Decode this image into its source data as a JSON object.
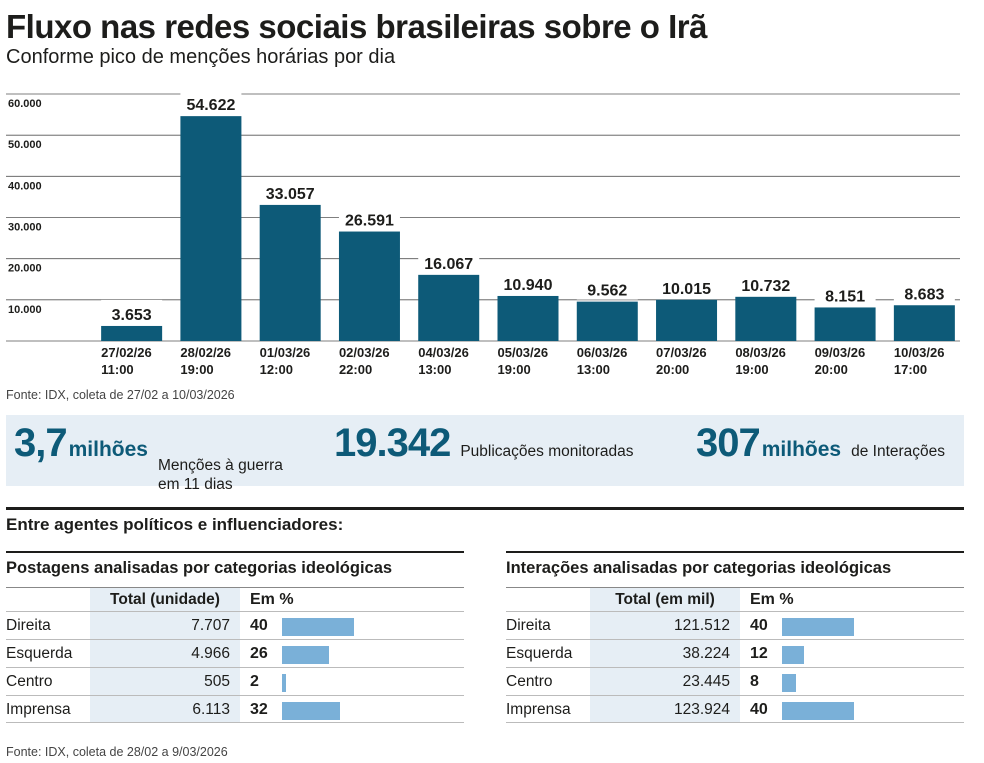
{
  "header": {
    "title": "Fluxo nas redes sociais brasileiras sobre o Irã",
    "subtitle": "Conforme pico de menções horárias por dia"
  },
  "chart_data": {
    "type": "bar",
    "yticks": [
      "10.000",
      "20.000",
      "30.000",
      "40.000",
      "50.000",
      "60.000"
    ],
    "ylim": [
      0,
      60000
    ],
    "grid": true,
    "bar_color": "#0d5a78",
    "bars": [
      {
        "date": "27/02/26",
        "time": "11:00",
        "value": 3653,
        "label": "3.653"
      },
      {
        "date": "28/02/26",
        "time": "19:00",
        "value": 54622,
        "label": "54.622"
      },
      {
        "date": "01/03/26",
        "time": "12:00",
        "value": 33057,
        "label": "33.057"
      },
      {
        "date": "02/03/26",
        "time": "22:00",
        "value": 26591,
        "label": "26.591"
      },
      {
        "date": "04/03/26",
        "time": "13:00",
        "value": 16067,
        "label": "16.067"
      },
      {
        "date": "05/03/26",
        "time": "19:00",
        "value": 10940,
        "label": "10.940"
      },
      {
        "date": "06/03/26",
        "time": "13:00",
        "value": 9562,
        "label": "9.562"
      },
      {
        "date": "07/03/26",
        "time": "20:00",
        "value": 10015,
        "label": "10.015"
      },
      {
        "date": "08/03/26",
        "time": "19:00",
        "value": 10732,
        "label": "10.732"
      },
      {
        "date": "09/03/26",
        "time": "20:00",
        "value": 8151,
        "label": "8.151"
      },
      {
        "date": "10/03/26",
        "time": "17:00",
        "value": 8683,
        "label": "8.683"
      }
    ]
  },
  "source1": "Fonte: IDX, coleta de 27/02 a 10/03/2026",
  "stats": [
    {
      "big": "3,7",
      "unit": "milhões",
      "desc_line1": "Menções à guerra",
      "desc_line2": "em 11 dias"
    },
    {
      "big": "19.342",
      "unit": "",
      "desc_line1": "Publicações monitoradas",
      "desc_line2": ""
    },
    {
      "big": "307",
      "unit": "milhões",
      "desc_line1": "de Interações",
      "desc_line2": ""
    }
  ],
  "section_title": "Entre agentes políticos e influenciadores:",
  "tables": {
    "posts": {
      "title": "Postagens analisadas por categorias ideológicas",
      "col_total": "Total (unidade)",
      "col_pct": "Em %",
      "rows": [
        {
          "name": "Direita",
          "total": "7.707",
          "pct": "40",
          "pct_value": 40
        },
        {
          "name": "Esquerda",
          "total": "4.966",
          "pct": "26",
          "pct_value": 26
        },
        {
          "name": "Centro",
          "total": "505",
          "pct": "2",
          "pct_value": 2
        },
        {
          "name": "Imprensa",
          "total": "6.113",
          "pct": "32",
          "pct_value": 32
        }
      ]
    },
    "interactions": {
      "title": "Interações analisadas por categorias ideológicas",
      "col_total": "Total (em mil)",
      "col_pct": "Em %",
      "rows": [
        {
          "name": "Direita",
          "total": "121.512",
          "pct": "40",
          "pct_value": 40
        },
        {
          "name": "Esquerda",
          "total": "38.224",
          "pct": "12",
          "pct_value": 12
        },
        {
          "name": "Centro",
          "total": "23.445",
          "pct": "8",
          "pct_value": 8
        },
        {
          "name": "Imprensa",
          "total": "123.924",
          "pct": "40",
          "pct_value": 40
        }
      ]
    }
  },
  "source2": "Fonte: IDX, coleta de 28/02 a 9/03/2026"
}
